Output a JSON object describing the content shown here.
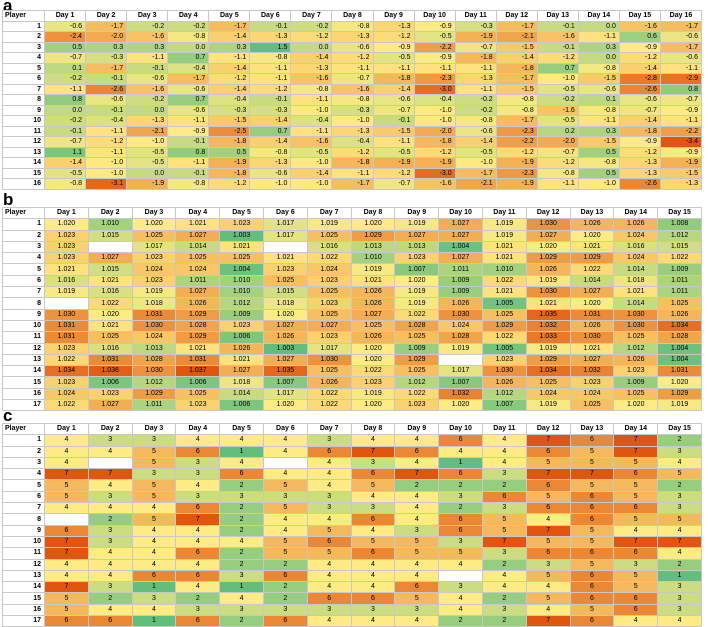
{
  "panels": [
    {
      "letter": "a",
      "header_player": "Player",
      "days": [
        "Day 1",
        "Day 2",
        "Day 3",
        "Day 4",
        "Day 5",
        "Day 6",
        "Day 7",
        "Day 8",
        "Day 9",
        "Day 10",
        "Day 11",
        "Day 12",
        "Day 13",
        "Day 14",
        "Day 15",
        "Day 16"
      ],
      "players": [
        "1",
        "2",
        "3",
        "4",
        "5",
        "6",
        "7",
        "8",
        "9",
        "10",
        "11",
        "12",
        "13",
        "14",
        "15",
        "16"
      ],
      "rows": [
        [
          "-0.6",
          "-1.7",
          "-0.2",
          "-0.2",
          "-1.7",
          "-0.1",
          "-0.2",
          "-0.8",
          "-1.3",
          "-0.9",
          "-0.3",
          "-1.7",
          "-0.1",
          "0.0",
          "-1.6",
          "-1.7"
        ],
        [
          "-2.4",
          "-2.0",
          "-1.6",
          "-0.8",
          "-1.4",
          "-1.3",
          "-1.2",
          "-1.3",
          "-1.2",
          "-0.5",
          "-1.9",
          "-2.1",
          "-1.6",
          "-1.1",
          "0.6",
          "-0.6"
        ],
        [
          "0.5",
          "0.3",
          "0.3",
          "0.0",
          "0.3",
          "1.5",
          "0.0",
          "-0.6",
          "-0.9",
          "-2.2",
          "-0.7",
          "-1.5",
          "-0.1",
          "0.3",
          "-0.9",
          "-1.7"
        ],
        [
          "-0.7",
          "-0.3",
          "-1.1",
          "0.7",
          "-1.1",
          "-0.8",
          "-1.4",
          "-1.2",
          "-0.5",
          "-0.9",
          "-1.8",
          "-1.4",
          "-1.2",
          "0.0",
          "-1.2",
          "-0.6"
        ],
        [
          "0.1",
          "-1.7",
          "-0.1",
          "-0.4",
          "-1.4",
          "-1.1",
          "-1.3",
          "-1.1",
          "-1.1",
          "-1.1",
          "-1.1",
          "-1.8",
          "0.7",
          "-0.8",
          "-1.4",
          "-1.1"
        ],
        [
          "-0.2",
          "-0.1",
          "-0.6",
          "-1.7",
          "-1.2",
          "-1.1",
          "-1.6",
          "-0.7",
          "-1.8",
          "-2.3",
          "-1.3",
          "-1.7",
          "-1.0",
          "-1.5",
          "-2.8",
          "-2.9"
        ],
        [
          "-1.1",
          "-2.6",
          "-1.6",
          "-0.6",
          "-1.4",
          "-1.2",
          "-0.8",
          "-1.6",
          "-1.4",
          "-3.0",
          "-1.1",
          "-1.5",
          "-0.5",
          "-0.6",
          "-2.6",
          "0.8"
        ],
        [
          "0.8",
          "-0.6",
          "-0.2",
          "0.7",
          "-0.4",
          "-0.1",
          "-1.1",
          "-0.8",
          "-0.6",
          "-0.4",
          "-0.2",
          "-0.8",
          "-0.2",
          "0.1",
          "-0.6",
          "-0.7"
        ],
        [
          "0.0",
          "-0.1",
          "0.0",
          "-0.6",
          "-0.3",
          "-0.3",
          "-1.0",
          "-0.3",
          "-0.7",
          "-1.0",
          "-0.2",
          "-0.8",
          "-1.6",
          "-0.8",
          "-0.7",
          "-0.9"
        ],
        [
          "-0.2",
          "-0.4",
          "-1.3",
          "-1.1",
          "-1.5",
          "-1.4",
          "-0.4",
          "-1.0",
          "-0.1",
          "-1.0",
          "-0.8",
          "-1.7",
          "-0.5",
          "-1.1",
          "-1.4",
          "-1.1"
        ],
        [
          "-0.1",
          "-1.1",
          "-2.1",
          "-0.9",
          "-2.5",
          "0.7",
          "-1.1",
          "-1.3",
          "-1.5",
          "-2.0",
          "-0.6",
          "-2.3",
          "0.2",
          "0.3",
          "-1.8",
          "-2.2"
        ],
        [
          "-0.7",
          "-1.2",
          "-1.0",
          "-0.1",
          "-1.8",
          "-1.4",
          "-1.6",
          "-0.4",
          "-1.1",
          "-1.8",
          "-1.4",
          "-2.2",
          "-2.0",
          "-1.5",
          "-0.9",
          "-3.4"
        ],
        [
          "1.1",
          "-1.1",
          "-0.5",
          "0.8",
          "0.5",
          "-0.8",
          "-0.5",
          "-1.2",
          "-0.5",
          "-1.2",
          "-0.5",
          "-1.2",
          "-0.7",
          "0.5",
          "-1.2",
          "-0.9"
        ],
        [
          "-1.4",
          "-1.0",
          "-0.5",
          "-1.1",
          "-1.9",
          "-1.3",
          "-1.0",
          "-1.8",
          "-1.9",
          "-1.9",
          "-1.0",
          "-1.9",
          "-1.2",
          "-0.8",
          "-1.3",
          "-1.9"
        ],
        [
          "-0.5",
          "-1.0",
          "0.0",
          "-0.1",
          "-1.8",
          "-0.6",
          "-1.4",
          "-1.1",
          "-1.2",
          "-3.0",
          "-1.7",
          "-2.3",
          "-0.8",
          "0.5",
          "-1.3",
          "-1.5"
        ],
        [
          "-0.8",
          "-3.1",
          "-1.9",
          "-0.8",
          "-1.2",
          "-1.0",
          "-1.0",
          "-1.7",
          "-0.7",
          "-1.6",
          "-2.1",
          "-1.9",
          "-1.1",
          "-1.0",
          "-2.6",
          "-1.3"
        ]
      ]
    },
    {
      "letter": "b",
      "header_player": "Player",
      "days": [
        "Day 1",
        "Day 2",
        "Day 3",
        "Day 4",
        "Day 5",
        "Day 6",
        "Day 7",
        "Day 8",
        "Day 9",
        "Day 10",
        "Day 11",
        "Day 12",
        "Day 13",
        "Day 14",
        "Day 15"
      ],
      "players": [
        "1",
        "2",
        "3",
        "4",
        "5",
        "6",
        "7",
        "8",
        "9",
        "10",
        "11",
        "12",
        "13",
        "14",
        "15",
        "16",
        "17"
      ],
      "rows": [
        [
          "1.020",
          "1.010",
          "1.020",
          "1.021",
          "1.023",
          "1.017",
          "1.019",
          "1.020",
          "1.019",
          "1.027",
          "1.019",
          "1.030",
          "1.026",
          "1.026",
          "1.008"
        ],
        [
          "1.023",
          "1.015",
          "1.025",
          "1.027",
          "1.003",
          "1.017",
          "1.025",
          "1.029",
          "1.027",
          "1.027",
          "1.019",
          "1.027",
          "1.020",
          "1.024",
          "1.012"
        ],
        [
          "1.023",
          "",
          "1.017",
          "1.014",
          "1.021",
          "",
          "1.016",
          "1.013",
          "1.013",
          "1.004",
          "1.021",
          "1.020",
          "1.021",
          "1.016",
          "1.015"
        ],
        [
          "1.023",
          "1.027",
          "1.023",
          "1.025",
          "1.025",
          "1.021",
          "1.022",
          "1.010",
          "1.023",
          "1.027",
          "1.021",
          "1.029",
          "1.029",
          "1.024",
          "1.022"
        ],
        [
          "1.021",
          "1.015",
          "1.024",
          "1.024",
          "1.004",
          "1.023",
          "1.024",
          "1.019",
          "1.007",
          "1.011",
          "1.010",
          "1.026",
          "1.022",
          "1.014",
          "1.009"
        ],
        [
          "1.016",
          "1.021",
          "1.023",
          "1.011",
          "1.010",
          "1.025",
          "1.023",
          "1.021",
          "1.020",
          "1.009",
          "1.022",
          "1.019",
          "1.014",
          "1.018",
          "1.011"
        ],
        [
          "1.019",
          "1.016",
          "1.019",
          "1.027",
          "1.010",
          "1.015",
          "1.025",
          "1.026",
          "1.019",
          "1.009",
          "1.021",
          "1.030",
          "1.027",
          "1.021",
          "1.011"
        ],
        [
          "",
          "1.022",
          "1.018",
          "1.026",
          "1.012",
          "1.018",
          "1.023",
          "1.026",
          "1.019",
          "1.026",
          "1.005",
          "1.021",
          "1.020",
          "1.014",
          "1.025"
        ],
        [
          "1.030",
          "1.020",
          "1.031",
          "1.029",
          "1.009",
          "1.020",
          "1.025",
          "1.027",
          "1.022",
          "1.030",
          "1.025",
          "1.035",
          "1.031",
          "1.030",
          "1.026"
        ],
        [
          "1.031",
          "1.021",
          "1.030",
          "1.028",
          "1.023",
          "1.027",
          "1.027",
          "1.025",
          "1.028",
          "1.024",
          "1.029",
          "1.032",
          "1.026",
          "1.030",
          "1.034"
        ],
        [
          "1.031",
          "1.025",
          "1.024",
          "1.029",
          "1.006",
          "1.026",
          "1.023",
          "1.026",
          "1.025",
          "1.028",
          "1.022",
          "1.033",
          "1.030",
          "1.025",
          "1.028"
        ],
        [
          "1.023",
          "1.016",
          "1.013",
          "1.021",
          "1.026",
          "1.003",
          "1.017",
          "1.020",
          "1.009",
          "1.019",
          "1.005",
          "1.019",
          "1.021",
          "1.012",
          "1.004"
        ],
        [
          "1.022",
          "1.031",
          "1.028",
          "1.031",
          "1.021",
          "1.027",
          "1.030",
          "1.020",
          "1.029",
          "",
          "1.023",
          "1.029",
          "1.027",
          "1.026",
          "1.004"
        ],
        [
          "1.034",
          "1.036",
          "1.030",
          "1.037",
          "1.027",
          "1.035",
          "1.025",
          "1.022",
          "1.025",
          "1.017",
          "1.030",
          "1.034",
          "1.032",
          "1.023",
          "1.031"
        ],
        [
          "1.023",
          "1.006",
          "1.012",
          "1.006",
          "1.018",
          "1.007",
          "1.026",
          "1.023",
          "1.012",
          "1.007",
          "1.026",
          "1.025",
          "1.023",
          "1.009",
          "1.020"
        ],
        [
          "1.024",
          "1.023",
          "1.029",
          "1.025",
          "1.014",
          "1.017",
          "1.022",
          "1.019",
          "1.022",
          "1.032",
          "1.012",
          "1.024",
          "1.024",
          "1.025",
          "1.029"
        ],
        [
          "1.022",
          "1.027",
          "1.011",
          "1.023",
          "1.006",
          "1.020",
          "1.022",
          "1.020",
          "1.023",
          "1.020",
          "1.007",
          "1.019",
          "1.025",
          "1.020",
          "1.019"
        ]
      ]
    },
    {
      "letter": "c",
      "header_player": "Player",
      "days": [
        "Day 1",
        "Day 2",
        "Day 3",
        "Day 4",
        "Day 5",
        "Day 6",
        "Day 7",
        "Day 8",
        "Day 9",
        "Day 10",
        "Day 11",
        "Day 12",
        "Day 13",
        "Day 14",
        "Day 15"
      ],
      "players": [
        "1",
        "2",
        "3",
        "4",
        "5",
        "6",
        "7",
        "8",
        "9",
        "10",
        "11",
        "12",
        "13",
        "14",
        "15",
        "16",
        "17"
      ],
      "rows": [
        [
          "4",
          "3",
          "3",
          "4",
          "4",
          "4",
          "3",
          "4",
          "4",
          "6",
          "4",
          "7",
          "6",
          "7",
          "2"
        ],
        [
          "4",
          "4",
          "5",
          "6",
          "1",
          "4",
          "6",
          "7",
          "6",
          "4",
          "4",
          "6",
          "5",
          "7",
          "3"
        ],
        [
          "4",
          "",
          "5",
          "3",
          "4",
          "",
          "4",
          "3",
          "4",
          "1",
          "4",
          "5",
          "5",
          "5",
          "4"
        ],
        [
          "7",
          "7",
          "3",
          "3",
          "6",
          "4",
          "4",
          "6",
          "7",
          "6",
          "3",
          "7",
          "7",
          "6",
          "5"
        ],
        [
          "5",
          "4",
          "5",
          "4",
          "2",
          "5",
          "4",
          "5",
          "2",
          "2",
          "2",
          "6",
          "5",
          "5",
          "2"
        ],
        [
          "5",
          "3",
          "5",
          "3",
          "3",
          "3",
          "3",
          "4",
          "4",
          "3",
          "6",
          "5",
          "6",
          "5",
          "3"
        ],
        [
          "4",
          "4",
          "4",
          "6",
          "2",
          "5",
          "3",
          "3",
          "4",
          "2",
          "3",
          "6",
          "6",
          "6",
          "3"
        ],
        [
          "",
          "2",
          "5",
          "7",
          "2",
          "4",
          "4",
          "6",
          "4",
          "6",
          "5",
          "4",
          "6",
          "5",
          "5"
        ],
        [
          "6",
          "3",
          "4",
          "4",
          "2",
          "4",
          "5",
          "4",
          "3",
          "6",
          "5",
          "7",
          "5",
          "4",
          "4"
        ],
        [
          "7",
          "3",
          "4",
          "4",
          "4",
          "5",
          "6",
          "5",
          "5",
          "3",
          "7",
          "5",
          "5",
          "7",
          "7"
        ],
        [
          "7",
          "4",
          "4",
          "6",
          "2",
          "5",
          "5",
          "6",
          "5",
          "5",
          "3",
          "6",
          "6",
          "6",
          "4"
        ],
        [
          "4",
          "4",
          "4",
          "4",
          "2",
          "2",
          "4",
          "4",
          "4",
          "4",
          "2",
          "3",
          "5",
          "3",
          "2"
        ],
        [
          "4",
          "4",
          "6",
          "6",
          "3",
          "6",
          "4",
          "4",
          "4",
          "",
          "4",
          "5",
          "6",
          "5",
          "1"
        ],
        [
          "7",
          "3",
          "1",
          "4",
          "1",
          "2",
          "4",
          "4",
          "6",
          "3",
          "4",
          "4",
          "6",
          "5",
          "3"
        ],
        [
          "5",
          "2",
          "3",
          "2",
          "4",
          "2",
          "6",
          "6",
          "5",
          "4",
          "2",
          "5",
          "6",
          "6",
          "3"
        ],
        [
          "5",
          "4",
          "4",
          "3",
          "3",
          "3",
          "3",
          "3",
          "3",
          "4",
          "3",
          "4",
          "5",
          "6",
          "3"
        ],
        [
          "6",
          "6",
          "1",
          "6",
          "2",
          "6",
          "4",
          "4",
          "4",
          "2",
          "2",
          "7",
          "6",
          "4",
          "4"
        ]
      ]
    }
  ],
  "colors": {
    "scale_low": "#63be7b",
    "scale_mid": "#ffeb84",
    "scale_high": "#e0560e",
    "empty": "#ffffff",
    "grid": "#c8c8c8"
  },
  "chart_data": [
    {
      "type": "heatmap",
      "panel": "a",
      "title": "",
      "xlabel": "Day",
      "ylabel": "Player",
      "vmin": -3.4,
      "vmax": 1.5,
      "color_direction": "low=red, high=green"
    },
    {
      "type": "heatmap",
      "panel": "b",
      "title": "",
      "xlabel": "Day",
      "ylabel": "Player",
      "vmin": 1.003,
      "vmax": 1.037,
      "color_direction": "low=green, high=red"
    },
    {
      "type": "heatmap",
      "panel": "c",
      "title": "",
      "xlabel": "Day",
      "ylabel": "Player",
      "vmin": 1,
      "vmax": 7,
      "color_direction": "low=green, high=red"
    }
  ]
}
